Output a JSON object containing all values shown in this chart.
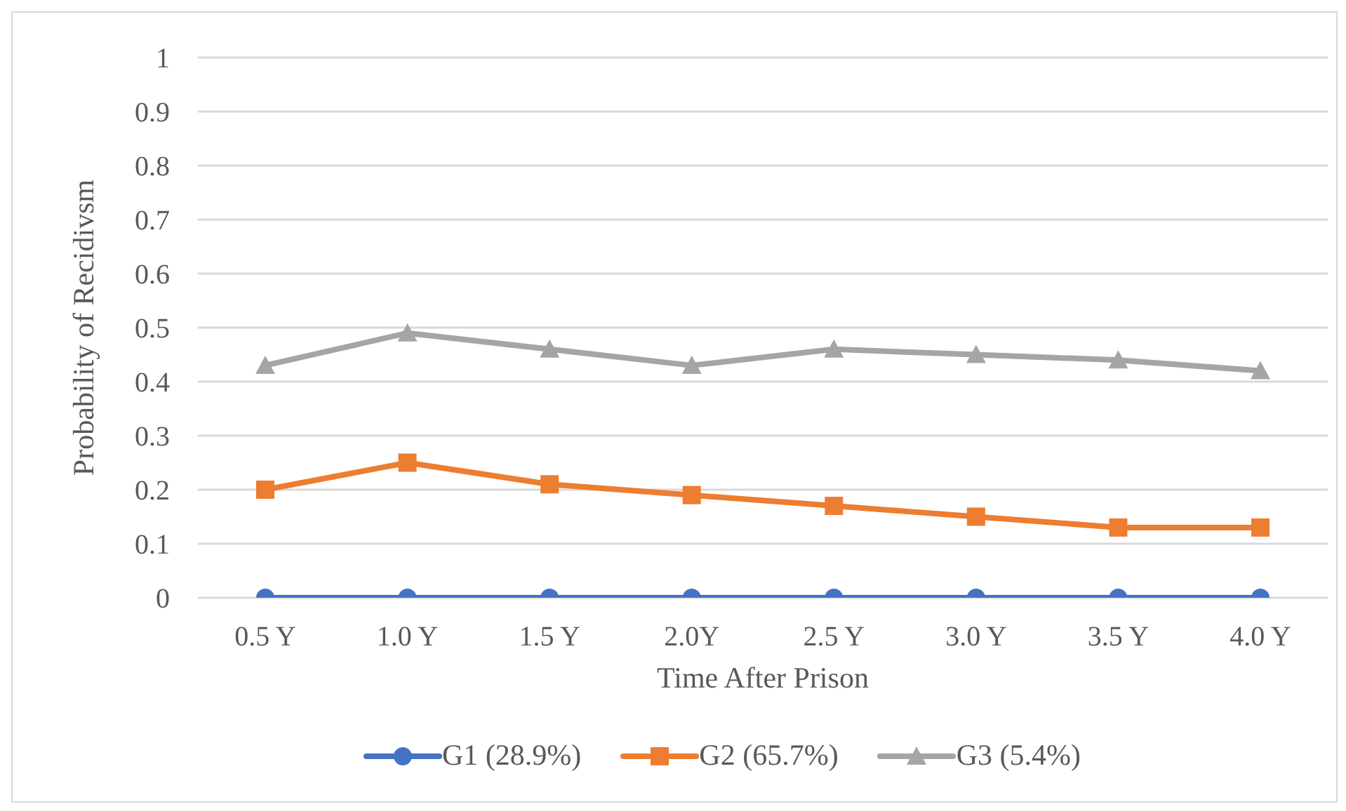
{
  "chart_data": {
    "type": "line",
    "xlabel": "Time After Prison",
    "ylabel": "Probability of Recidivsm",
    "categories": [
      "0.5 Y",
      "1.0 Y",
      "1.5 Y",
      "2.0Y",
      "2.5 Y",
      "3.0 Y",
      "3.5 Y",
      "4.0 Y"
    ],
    "series": [
      {
        "name": "G1 (28.9%)",
        "color": "#4472c4",
        "marker": "circle",
        "values": [
          0,
          0,
          0,
          0,
          0,
          0,
          0,
          0
        ]
      },
      {
        "name": "G2 (65.7%)",
        "color": "#ed7d31",
        "marker": "square",
        "values": [
          0.2,
          0.25,
          0.21,
          0.19,
          0.17,
          0.15,
          0.13,
          0.13
        ]
      },
      {
        "name": "G3 (5.4%)",
        "color": "#a5a5a5",
        "marker": "triangle",
        "values": [
          0.43,
          0.49,
          0.46,
          0.43,
          0.46,
          0.45,
          0.44,
          0.42
        ]
      }
    ],
    "ylim": [
      0,
      1
    ],
    "yticks": [
      0,
      0.1,
      0.2,
      0.3,
      0.4,
      0.5,
      0.6,
      0.7,
      0.8,
      0.9,
      1
    ],
    "grid": "y",
    "legend": "bottom",
    "line_style": "solid"
  }
}
